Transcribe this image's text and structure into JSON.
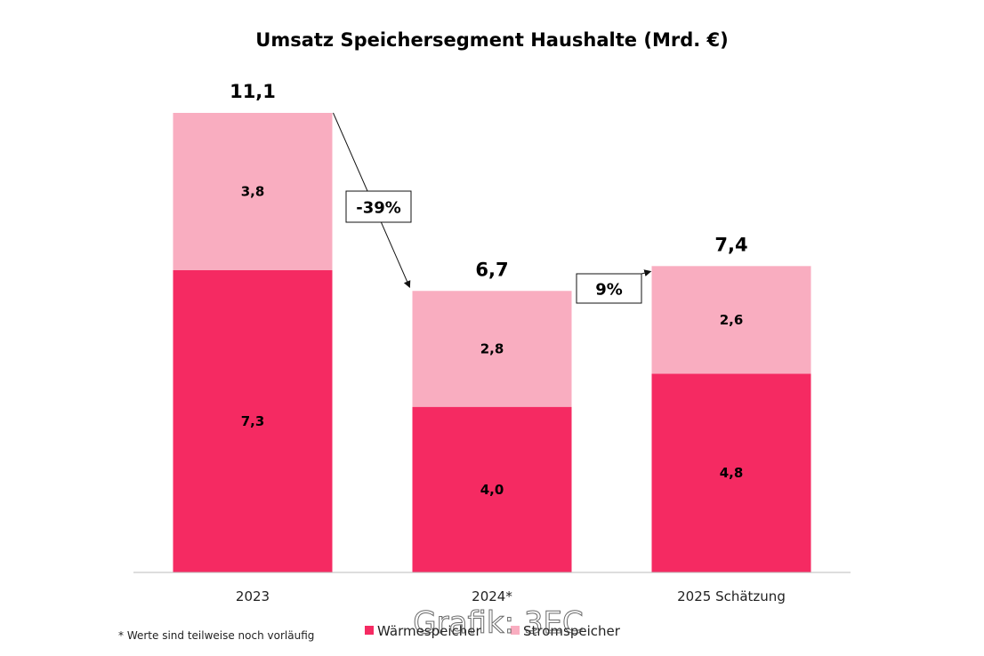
{
  "chart_data": {
    "type": "bar",
    "stacked": true,
    "title": "Umsatz Speichersegment Haushalte (Mrd. €)",
    "categories": [
      "2023",
      "2024*",
      "2025 Schätzung"
    ],
    "series": [
      {
        "name": "Wärmespeicher",
        "values": [
          7.3,
          4.0,
          4.8
        ],
        "labels": [
          "7,3",
          "4,0",
          "4,8"
        ],
        "color": "#f52a62"
      },
      {
        "name": "Stromspeicher",
        "values": [
          3.8,
          2.8,
          2.6
        ],
        "labels": [
          "3,8",
          "2,8",
          "2,6"
        ],
        "color": "#f9adc0"
      }
    ],
    "totals": [
      11.1,
      6.7,
      7.4
    ],
    "total_labels": [
      "11,1",
      "6,7",
      "7,4"
    ],
    "changes": [
      {
        "from": "2023",
        "to": "2024*",
        "label": "-39%"
      },
      {
        "from": "2024*",
        "to": "2025 Schätzung",
        "label": "9%"
      }
    ],
    "ylim": [
      0,
      11.1
    ],
    "grid": false,
    "legend": "bottom",
    "xlabel": "",
    "ylabel": ""
  },
  "footnote": "* Werte sind teilweise noch vorläufig",
  "watermark": "Grafik: 3EC"
}
